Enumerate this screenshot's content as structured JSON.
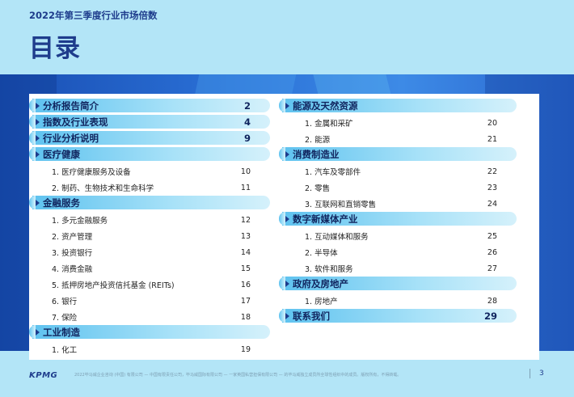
{
  "header": {
    "subtitle": "2022年第三季度行业市场倍数",
    "title": "目录"
  },
  "toc_left": [
    {
      "type": "section",
      "label": "分析报告简介",
      "page": "2"
    },
    {
      "type": "section",
      "label": "指数及行业表现",
      "page": "4"
    },
    {
      "type": "section",
      "label": "行业分析说明",
      "page": "9"
    },
    {
      "type": "section",
      "label": "医疗健康",
      "page": ""
    },
    {
      "type": "item",
      "label": "1. 医疗健康服务及设备",
      "page": "10"
    },
    {
      "type": "item",
      "label": "2. 制药、生物技术和生命科学",
      "page": "11"
    },
    {
      "type": "section",
      "label": "金融服务",
      "page": ""
    },
    {
      "type": "item",
      "label": "1. 多元金融服务",
      "page": "12"
    },
    {
      "type": "item",
      "label": "2. 资产管理",
      "page": "13"
    },
    {
      "type": "item",
      "label": "3. 投资银行",
      "page": "14"
    },
    {
      "type": "item",
      "label": "4. 消费金融",
      "page": "15"
    },
    {
      "type": "item",
      "label": "5. 抵押房地产投资信托基金 (REITs)",
      "page": "16"
    },
    {
      "type": "item",
      "label": "6. 银行",
      "page": "17"
    },
    {
      "type": "item",
      "label": "7. 保险",
      "page": "18"
    },
    {
      "type": "section",
      "label": "工业制造",
      "page": ""
    },
    {
      "type": "item",
      "label": "1. 化工",
      "page": "19"
    }
  ],
  "toc_right": [
    {
      "type": "section",
      "label": "能源及天然资源",
      "page": ""
    },
    {
      "type": "item",
      "label": "1. 金属和采矿",
      "page": "20"
    },
    {
      "type": "item",
      "label": "2. 能源",
      "page": "21"
    },
    {
      "type": "section",
      "label": "消费制造业",
      "page": ""
    },
    {
      "type": "item",
      "label": "1. 汽车及零部件",
      "page": "22"
    },
    {
      "type": "item",
      "label": "2. 零售",
      "page": "23"
    },
    {
      "type": "item",
      "label": "3. 互联网和直销零售",
      "page": "24"
    },
    {
      "type": "section",
      "label": "数字新媒体产业",
      "page": ""
    },
    {
      "type": "item",
      "label": "1. 互动媒体和服务",
      "page": "25"
    },
    {
      "type": "item",
      "label": "2. 半导体",
      "page": "26"
    },
    {
      "type": "item",
      "label": "3. 软件和服务",
      "page": "27"
    },
    {
      "type": "section",
      "label": "政府及房地产",
      "page": ""
    },
    {
      "type": "item",
      "label": "1. 房地产",
      "page": "28"
    },
    {
      "type": "section",
      "label": "联系我们",
      "page": "29"
    }
  ],
  "footer": {
    "logo": "KPMG",
    "legal": "2022毕马威企业咨询 (中国) 有限公司 — 中国有限责任公司，毕马威国际有限公司 — 一家英国私营担保有限公司 — 的毕马威独立成员所全球性组织中的成员。版权所有，不得转载。",
    "page_number": "3"
  },
  "colors": {
    "navy": "#1e3c8c",
    "background": "#b3e5f7",
    "section_bar": "#5ec2ef"
  },
  "icons": {
    "section_marker": "triangle-right-icon"
  }
}
